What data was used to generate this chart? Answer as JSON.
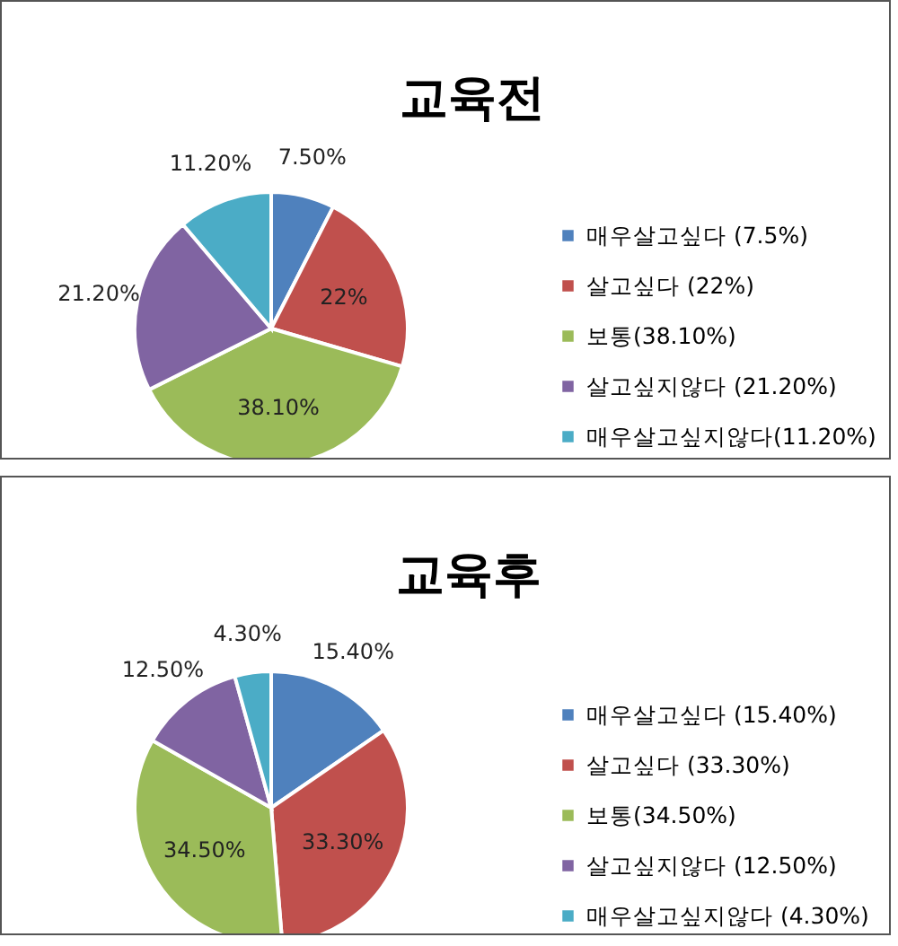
{
  "chart_data": [
    {
      "type": "pie",
      "title": "교육전",
      "categories": [
        "매우살고싶다 (7.5%)",
        "살고싶다 (22%)",
        "보통(38.10%)",
        "살고싶지않다 (21.20%)",
        "매우살고싶지않다(11.20%)"
      ],
      "values": [
        7.5,
        22,
        38.1,
        21.2,
        11.2
      ],
      "colors": [
        "#4f81bd",
        "#c0504d",
        "#9bbb59",
        "#8064a2",
        "#4bacc6"
      ],
      "value_labels": [
        "7.50%",
        "22%",
        "38.10%",
        "21.20%",
        "11.20%"
      ],
      "legend": "right"
    },
    {
      "type": "pie",
      "title": "교육후",
      "categories": [
        "매우살고싶다 (15.40%)",
        "살고싶다 (33.30%)",
        "보통(34.50%)",
        "살고싶지않다 (12.50%)",
        "매우살고싶지않다 (4.30%)"
      ],
      "values": [
        15.4,
        33.3,
        34.5,
        12.5,
        4.3
      ],
      "colors": [
        "#4f81bd",
        "#c0504d",
        "#9bbb59",
        "#8064a2",
        "#4bacc6"
      ],
      "value_labels": [
        "15.40%",
        "33.30%",
        "34.50%",
        "12.50%",
        "4.30%"
      ],
      "legend": "right"
    }
  ]
}
